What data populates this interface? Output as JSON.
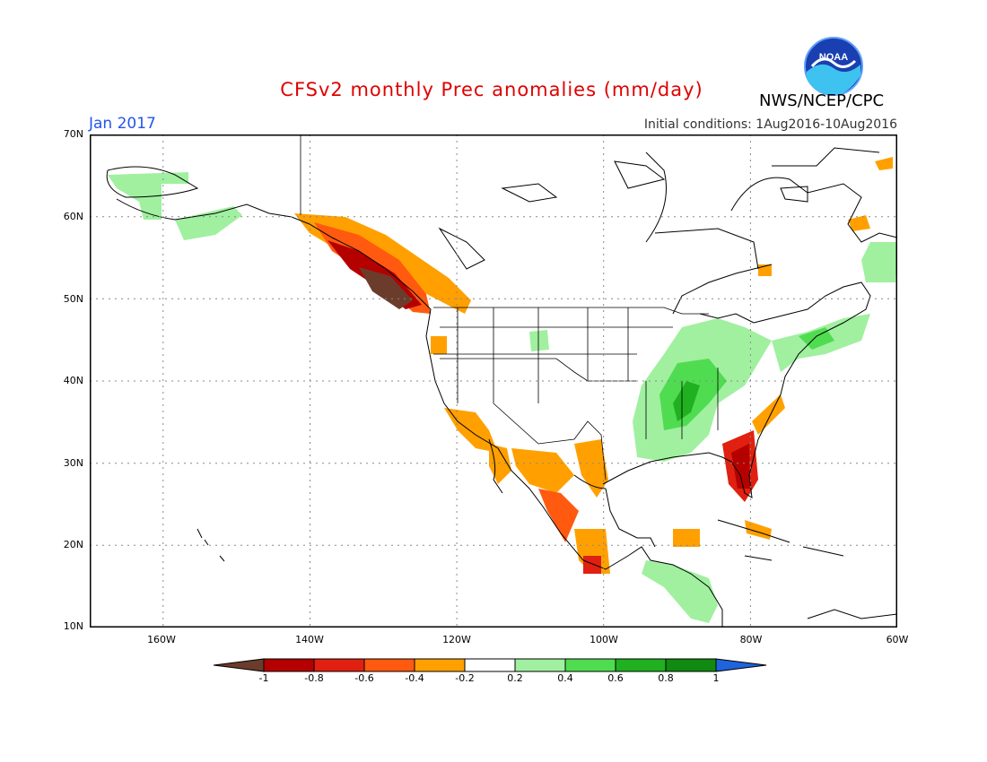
{
  "header": {
    "title": "CFSv2 monthly Prec anomalies (mm/day)",
    "org": "NWS/NCEP/CPC",
    "month": "Jan 2017",
    "initial_conditions": "Initial conditions: 1Aug2016-10Aug2016",
    "logo_text": "NOAA"
  },
  "axes": {
    "lat_labels": [
      "70N",
      "60N",
      "50N",
      "40N",
      "30N",
      "20N",
      "10N"
    ],
    "lon_labels": [
      "160W",
      "140W",
      "120W",
      "100W",
      "80W",
      "60W"
    ]
  },
  "colorbar": {
    "labels": [
      "-1",
      "-0.8",
      "-0.6",
      "-0.4",
      "-0.2",
      "0.2",
      "0.4",
      "0.6",
      "0.8",
      "1"
    ],
    "colors": [
      "#6b3c2b",
      "#b50000",
      "#e02010",
      "#ff5a10",
      "#ffa000",
      "#ffffff",
      "#a0f0a0",
      "#50dc50",
      "#20b020",
      "#108a10",
      "#1e64dc"
    ]
  },
  "map": {
    "lat_range": [
      10,
      70
    ],
    "lon_range": [
      -170,
      -60
    ],
    "grid": true
  }
}
